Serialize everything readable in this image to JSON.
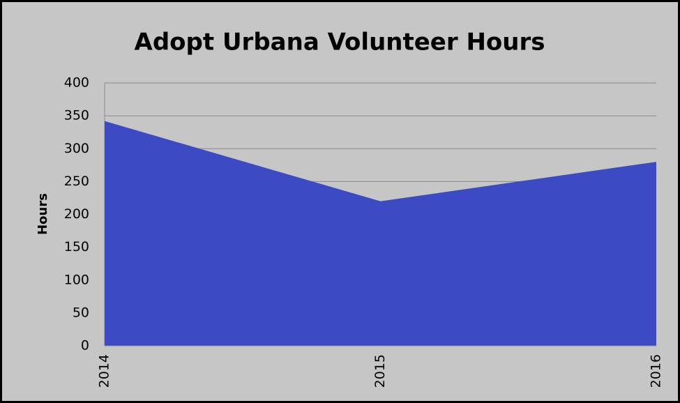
{
  "chart_data": {
    "type": "area",
    "title": "Adopt Urbana Volunteer Hours",
    "y_label": "Hours",
    "categories": [
      "2014",
      "2015",
      "2016"
    ],
    "series": [
      {
        "name": "Hours",
        "color": "#3c4bc4",
        "values": [
          342,
          220,
          280
        ]
      }
    ],
    "ylim": [
      0,
      400
    ],
    "yticks": [
      0,
      50,
      100,
      150,
      200,
      250,
      300,
      350,
      400
    ],
    "grid": true
  }
}
